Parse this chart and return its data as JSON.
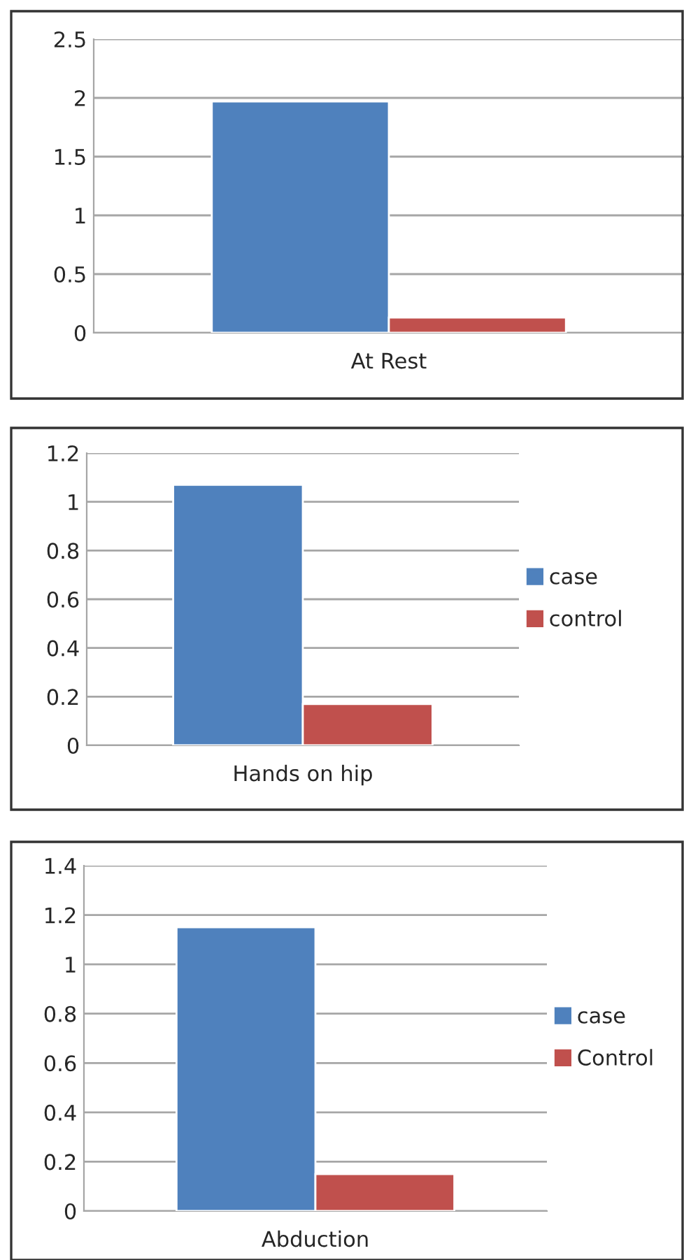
{
  "chart_data": [
    {
      "type": "bar",
      "categories": [
        "At Rest"
      ],
      "series": [
        {
          "color": "#4f81bd",
          "values": [
            1.97
          ]
        },
        {
          "color": "#c0504d",
          "values": [
            0.13
          ]
        }
      ],
      "ylim": [
        0,
        2.5
      ],
      "yticks": [
        0,
        0.5,
        1,
        1.5,
        2,
        2.5
      ],
      "grid": "y"
    },
    {
      "type": "bar",
      "categories": [
        "Hands on hip"
      ],
      "series": [
        {
          "name": "case",
          "color": "#4f81bd",
          "values": [
            1.07
          ]
        },
        {
          "name": "control",
          "color": "#c0504d",
          "values": [
            0.17
          ]
        }
      ],
      "ylim": [
        0,
        1.2
      ],
      "yticks": [
        0,
        0.2,
        0.4,
        0.6,
        0.8,
        1,
        1.2
      ],
      "grid": "y",
      "legend": "right"
    },
    {
      "type": "bar",
      "categories": [
        "Abduction"
      ],
      "series": [
        {
          "name": "case",
          "color": "#4f81bd",
          "values": [
            1.15
          ]
        },
        {
          "name": "Control",
          "color": "#c0504d",
          "values": [
            0.15
          ]
        }
      ],
      "ylim": [
        0,
        1.4
      ],
      "yticks": [
        0,
        0.2,
        0.4,
        0.6,
        0.8,
        1,
        1.2,
        1.4
      ],
      "grid": "y",
      "legend": "right"
    }
  ]
}
